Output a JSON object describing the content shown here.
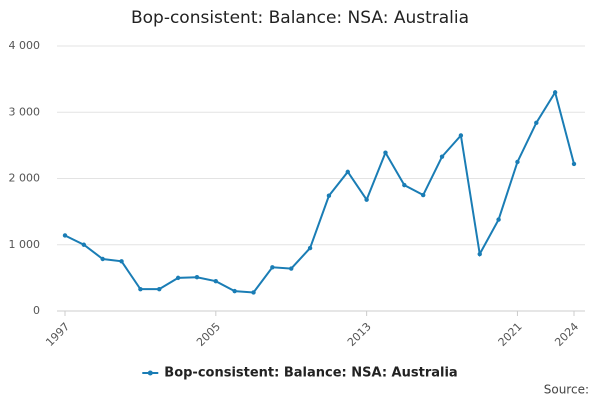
{
  "chart_data": {
    "type": "line",
    "title": "Bop-consistent: Balance: NSA: Australia",
    "source": "Source:",
    "x": [
      1997,
      1998,
      1999,
      2000,
      2001,
      2002,
      2003,
      2004,
      2005,
      2006,
      2007,
      2008,
      2009,
      2010,
      2011,
      2012,
      2013,
      2014,
      2015,
      2016,
      2017,
      2018,
      2019,
      2020,
      2021,
      2022,
      2023,
      2024
    ],
    "series": [
      {
        "name": "Bop-consistent: Balance: NSA: Australia",
        "color": "#1a7db5",
        "values": [
          1140,
          1000,
          785,
          750,
          330,
          330,
          500,
          510,
          450,
          300,
          280,
          660,
          640,
          950,
          1740,
          2100,
          1680,
          2390,
          1900,
          1750,
          2330,
          2650,
          860,
          1380,
          2250,
          2840,
          3300,
          2220
        ]
      }
    ],
    "xlim": [
      1997,
      2024
    ],
    "xticks": [
      1997,
      2005,
      2013,
      2021,
      2024
    ],
    "ylim": [
      0,
      4000
    ],
    "yticks": [
      0,
      {
        "value": 1000,
        "label": "1 000"
      },
      {
        "value": 2000,
        "label": "2 000"
      },
      {
        "value": 3000,
        "label": "3 000"
      },
      {
        "value": 4000,
        "label": "4 000"
      }
    ],
    "grid": true,
    "legend": "bottom"
  }
}
